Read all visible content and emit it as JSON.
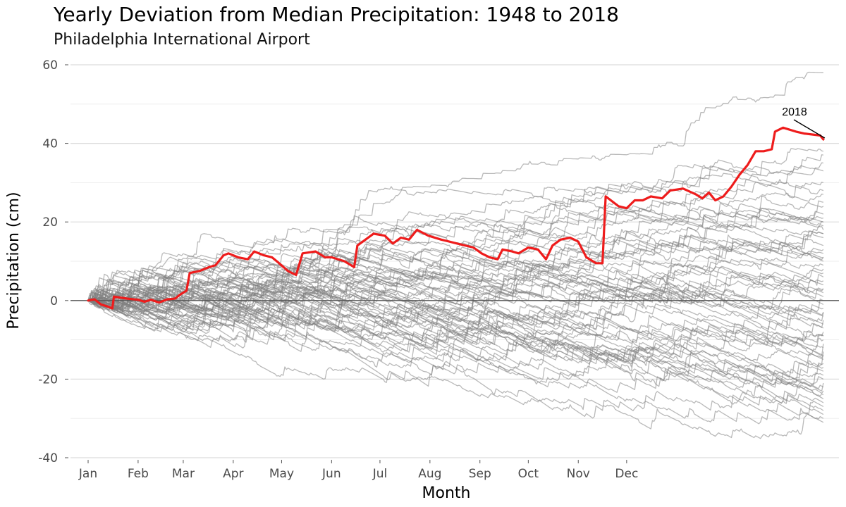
{
  "chart_data": {
    "type": "line",
    "title": "Yearly Deviation from Median Precipitation: 1948 to 2018",
    "subtitle": "Philadelphia International Airport",
    "xlabel": "Month",
    "ylabel": "Precipitation (cm)",
    "x_ticks": [
      "Jan",
      "Feb",
      "Mar",
      "Apr",
      "May",
      "Jun",
      "Jul",
      "Aug",
      "Sep",
      "Oct",
      "Nov",
      "Dec"
    ],
    "y_ticks": [
      60,
      40,
      20,
      0,
      -20,
      -40
    ],
    "ylim": [
      -40,
      60
    ],
    "xlim": [
      1,
      366
    ],
    "x_unit": "day of year",
    "grid": true,
    "zero_line": true,
    "highlight": {
      "name": "2018",
      "color": "#ee1c1c",
      "points": [
        [
          1,
          0
        ],
        [
          5,
          0.3
        ],
        [
          9,
          -1
        ],
        [
          13,
          -1.5
        ],
        [
          16,
          -2
        ],
        [
          17,
          1
        ],
        [
          25,
          0.5
        ],
        [
          32,
          0.2
        ],
        [
          36,
          -0.3
        ],
        [
          40,
          0.2
        ],
        [
          45,
          -0.5
        ],
        [
          50,
          0.3
        ],
        [
          55,
          0.5
        ],
        [
          58,
          1.5
        ],
        [
          62,
          2.5
        ],
        [
          64,
          7
        ],
        [
          70,
          7.5
        ],
        [
          76,
          8.5
        ],
        [
          80,
          9
        ],
        [
          85,
          11.5
        ],
        [
          88,
          12
        ],
        [
          94,
          11
        ],
        [
          100,
          10.5
        ],
        [
          104,
          12.5
        ],
        [
          110,
          11.5
        ],
        [
          115,
          11
        ],
        [
          118,
          10
        ],
        [
          125,
          7.5
        ],
        [
          130,
          6.5
        ],
        [
          134,
          12
        ],
        [
          142,
          12.5
        ],
        [
          148,
          11
        ],
        [
          152,
          11
        ],
        [
          160,
          10
        ],
        [
          166,
          8.5
        ],
        [
          168,
          14
        ],
        [
          173,
          15.5
        ],
        [
          178,
          17
        ],
        [
          185,
          16.5
        ],
        [
          190,
          14.5
        ],
        [
          195,
          16
        ],
        [
          200,
          15.5
        ],
        [
          205,
          18
        ],
        [
          212,
          16.5
        ],
        [
          220,
          15.5
        ],
        [
          230,
          14.5
        ],
        [
          240,
          13.5
        ],
        [
          245,
          12
        ],
        [
          250,
          11
        ],
        [
          255,
          10.5
        ],
        [
          258,
          13
        ],
        [
          264,
          12.5
        ],
        [
          268,
          12
        ],
        [
          274,
          13.5
        ],
        [
          280,
          13
        ],
        [
          285,
          10.5
        ],
        [
          289,
          14
        ],
        [
          294,
          15.5
        ],
        [
          300,
          16
        ],
        [
          305,
          15
        ],
        [
          310,
          11
        ],
        [
          316,
          9.5
        ],
        [
          320,
          9.5
        ],
        [
          322,
          26.5
        ],
        [
          330,
          24
        ],
        [
          335,
          23.5
        ],
        [
          340,
          25.5
        ],
        [
          345,
          25.5
        ],
        [
          350,
          26.5
        ],
        [
          357,
          26
        ],
        [
          362,
          28
        ],
        [
          370,
          28.5
        ],
        [
          378,
          27
        ],
        [
          382,
          26
        ],
        [
          386,
          27.5
        ],
        [
          390,
          25.5
        ],
        [
          395,
          26.5
        ],
        [
          400,
          29
        ],
        [
          405,
          32
        ],
        [
          410,
          34.5
        ],
        [
          415,
          38
        ],
        [
          420,
          38
        ],
        [
          425,
          38.5
        ],
        [
          427,
          43
        ],
        [
          432,
          44
        ],
        [
          440,
          43
        ],
        [
          445,
          42.5
        ],
        [
          455,
          42
        ],
        [
          457,
          41
        ]
      ]
    },
    "background_series": {
      "color": "#808080",
      "count": 70,
      "description_endpoints_range": [
        -31,
        58
      ],
      "final_values": [
        58,
        38,
        37,
        35,
        33,
        30,
        28,
        27,
        25,
        22,
        21,
        20,
        20,
        19,
        18,
        17,
        17,
        16,
        14,
        12,
        11,
        11,
        10,
        9,
        8,
        7,
        6,
        5,
        4,
        3,
        2,
        1,
        0,
        -1,
        -2,
        -3,
        -4,
        -5,
        -6,
        -7,
        -8,
        -9,
        -10,
        -11,
        -12,
        -13,
        -14,
        -15,
        -16,
        -17,
        -18,
        -19,
        -20,
        -21,
        -22,
        -23,
        -24,
        -25,
        -26,
        -27,
        -28,
        -29,
        -30,
        -31,
        -14,
        -9,
        -3,
        3,
        13,
        24
      ]
    },
    "annotations": [
      {
        "text": "2018"
      }
    ]
  }
}
